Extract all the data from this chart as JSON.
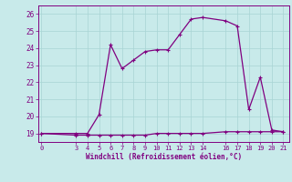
{
  "xlabel": "Windchill (Refroidissement éolien,°C)",
  "bg_color": "#c8eaea",
  "line_color": "#800080",
  "grid_color": "#a8d4d4",
  "x_hours": [
    0,
    3,
    4,
    5,
    6,
    7,
    8,
    9,
    10,
    11,
    12,
    13,
    14,
    16,
    17,
    18,
    19,
    20,
    21
  ],
  "temp_values": [
    19,
    19,
    19,
    20.1,
    24.2,
    22.8,
    23.3,
    23.8,
    23.9,
    23.9,
    24.8,
    25.7,
    25.8,
    25.6,
    25.3,
    20.4,
    22.3,
    19.2,
    19.1
  ],
  "windchill_values": [
    19,
    18.9,
    18.9,
    18.9,
    18.9,
    18.9,
    18.9,
    18.9,
    19.0,
    19.0,
    19.0,
    19.0,
    19.0,
    19.1,
    19.1,
    19.1,
    19.1,
    19.1,
    19.1
  ],
  "ylim": [
    18.5,
    26.5
  ],
  "xlim": [
    -0.3,
    21.5
  ],
  "yticks": [
    19,
    20,
    21,
    22,
    23,
    24,
    25,
    26
  ],
  "xtick_positions": [
    0,
    3,
    4,
    5,
    6,
    7,
    8,
    9,
    10,
    11,
    12,
    13,
    14,
    16,
    17,
    18,
    19,
    20,
    21
  ],
  "xtick_labels": [
    "0",
    "3",
    "4",
    "5",
    "6",
    "7",
    "8",
    "9",
    "10",
    "11",
    "12",
    "13",
    "14",
    "16",
    "17",
    "18",
    "19",
    "20",
    "21"
  ]
}
